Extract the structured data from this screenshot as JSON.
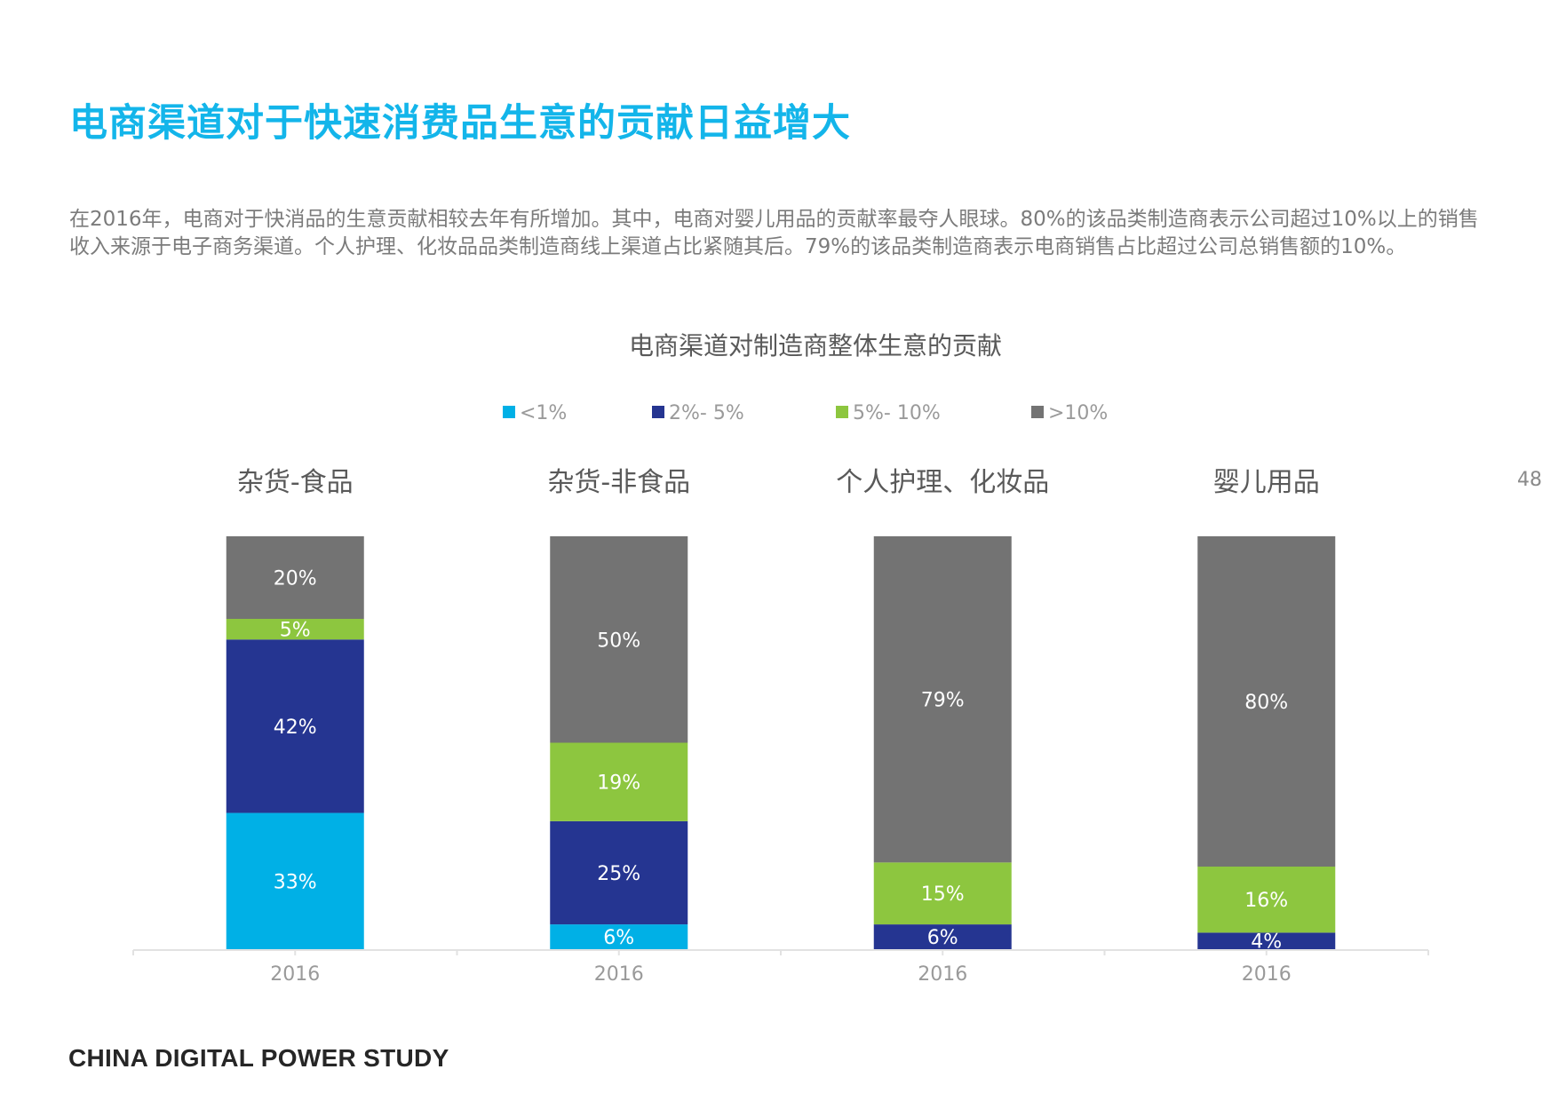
{
  "page": {
    "title": "电商渠道对于快速消费品生意的贡献日益增大",
    "intro": "在2016年，电商对于快消品的生意贡献相较去年有所增加。其中，电商对婴儿用品的贡献率最夺人眼球。80%的该品类制造商表示公司超过10%以上的销售收入来源于电子商务渠道。个人护理、化妆品品类制造商线上渠道占比紧随其后。79%的该品类制造商表示电商销售占比超过公司总销售额的10%。",
    "page_number": "48",
    "footer": "CHINA DIGITAL POWER STUDY"
  },
  "chart_data": {
    "type": "bar",
    "stacked": true,
    "title": "电商渠道对制造商整体生意的贡献",
    "legend_position": "top",
    "legend": [
      "<1%",
      "2%- 5%",
      "5%- 10%",
      ">10%"
    ],
    "series_colors": [
      "#00b0e6",
      "#253591",
      "#8dc63f",
      "#737373"
    ],
    "x_tick_label": "2016",
    "ylim": [
      0,
      100
    ],
    "grid": false,
    "groups": [
      {
        "name": "杂货-食品",
        "values": [
          33,
          42,
          5,
          20
        ],
        "labels": [
          "33%",
          "42%",
          "5%",
          "20%"
        ]
      },
      {
        "name": "杂货-非食品",
        "values": [
          6,
          25,
          19,
          50
        ],
        "labels": [
          "6%",
          "25%",
          "19%",
          "50%"
        ]
      },
      {
        "name": "个人护理、化妆品",
        "values": [
          0,
          6,
          15,
          79
        ],
        "labels": [
          "",
          "6%",
          "15%",
          "79%"
        ]
      },
      {
        "name": "婴儿用品",
        "values": [
          0,
          4,
          16,
          80
        ],
        "labels": [
          "",
          "4%",
          "16%",
          "80%"
        ]
      }
    ]
  }
}
